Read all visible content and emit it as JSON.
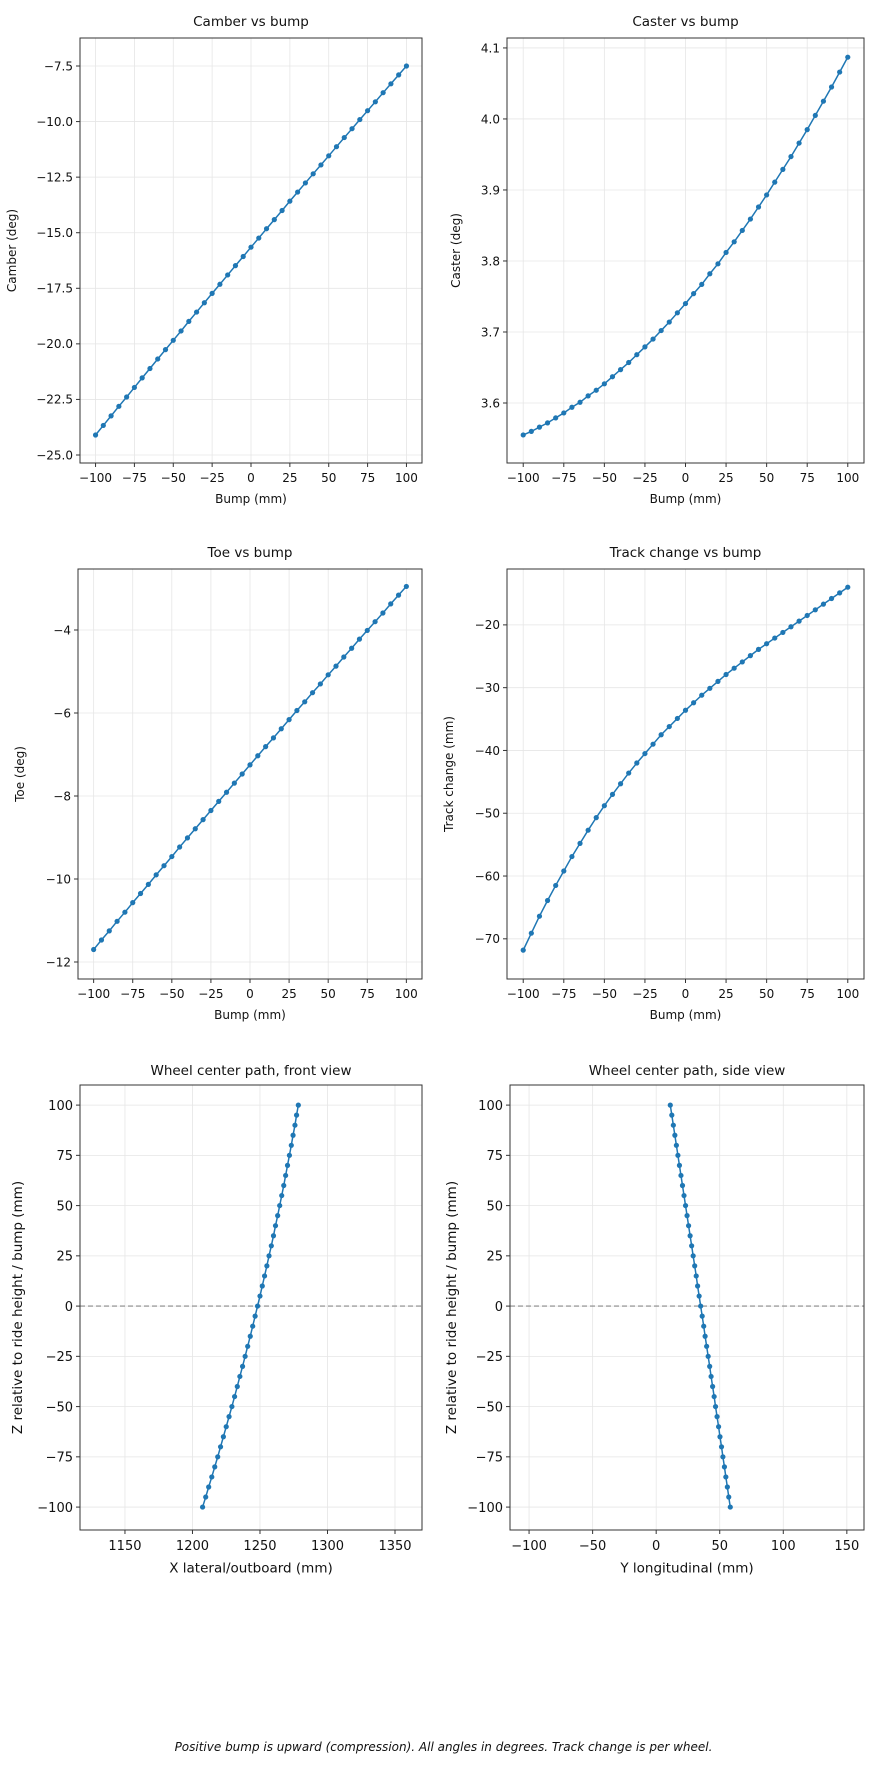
{
  "footnote": "Positive bump is upward (compression). All angles in degrees. Track change is per wheel.",
  "colors": {
    "series": "#1f77b4",
    "grid": "#e6e6e6",
    "frame": "#333333",
    "reference_line": "#888888"
  },
  "chart_data": [
    {
      "type": "line",
      "title": "Camber vs bump",
      "xlabel": "Bump (mm)",
      "ylabel": "Camber (deg)",
      "xlim": [
        -110,
        110
      ],
      "ylim": [
        -25.36,
        -6.24
      ],
      "grid": true,
      "markers": true,
      "xticks": [
        {
          "v": -100,
          "label": "−100"
        },
        {
          "v": -75,
          "label": "−75"
        },
        {
          "v": -50,
          "label": "−50"
        },
        {
          "v": -25,
          "label": "−25"
        },
        {
          "v": 0,
          "label": "0"
        },
        {
          "v": 25,
          "label": "25"
        },
        {
          "v": 50,
          "label": "50"
        },
        {
          "v": 75,
          "label": "75"
        },
        {
          "v": 100,
          "label": "100"
        }
      ],
      "yticks": [
        {
          "v": -7.5,
          "label": "−7.5"
        },
        {
          "v": -10,
          "label": "−10.0"
        },
        {
          "v": -12.5,
          "label": "−12.5"
        },
        {
          "v": -15,
          "label": "−15.0"
        },
        {
          "v": -17.5,
          "label": "−17.5"
        },
        {
          "v": -20,
          "label": "−20.0"
        },
        {
          "v": -22.5,
          "label": "−22.5"
        },
        {
          "v": -25,
          "label": "−25.0"
        }
      ],
      "x": [
        -100,
        -95,
        -90,
        -85,
        -80,
        -75,
        -70,
        -65,
        -60,
        -55,
        -50,
        -45,
        -40,
        -35,
        -30,
        -25,
        -20,
        -15,
        -10,
        -5,
        0,
        5,
        10,
        15,
        20,
        25,
        30,
        35,
        40,
        45,
        50,
        55,
        60,
        65,
        70,
        75,
        80,
        85,
        90,
        95,
        100
      ],
      "y": [
        -24.1,
        -23.67,
        -23.24,
        -22.81,
        -22.39,
        -21.96,
        -21.53,
        -21.11,
        -20.68,
        -20.26,
        -19.84,
        -19.42,
        -18.99,
        -18.57,
        -18.15,
        -17.73,
        -17.32,
        -16.9,
        -16.48,
        -16.07,
        -15.65,
        -15.24,
        -14.82,
        -14.41,
        -14.0,
        -13.58,
        -13.17,
        -12.76,
        -12.35,
        -11.95,
        -11.54,
        -11.13,
        -10.72,
        -10.32,
        -9.91,
        -9.51,
        -9.11,
        -8.7,
        -8.3,
        -7.9,
        -7.5
      ]
    },
    {
      "type": "line",
      "title": "Caster vs bump",
      "xlabel": "Bump (mm)",
      "ylabel": "Caster (deg)",
      "xlim": [
        -110,
        110
      ],
      "ylim": [
        3.5155,
        4.114
      ],
      "grid": true,
      "markers": true,
      "xticks": [
        {
          "v": -100,
          "label": "−100"
        },
        {
          "v": -75,
          "label": "−75"
        },
        {
          "v": -50,
          "label": "−50"
        },
        {
          "v": -25,
          "label": "−25"
        },
        {
          "v": 0,
          "label": "0"
        },
        {
          "v": 25,
          "label": "25"
        },
        {
          "v": 50,
          "label": "50"
        },
        {
          "v": 75,
          "label": "75"
        },
        {
          "v": 100,
          "label": "100"
        }
      ],
      "yticks": [
        {
          "v": 3.6,
          "label": "3.6"
        },
        {
          "v": 3.7,
          "label": "3.7"
        },
        {
          "v": 3.8,
          "label": "3.8"
        },
        {
          "v": 3.9,
          "label": "3.9"
        },
        {
          "v": 4.0,
          "label": "4.0"
        },
        {
          "v": 4.1,
          "label": "4.1"
        }
      ],
      "x": [
        -100,
        -95,
        -90,
        -85,
        -80,
        -75,
        -70,
        -65,
        -60,
        -55,
        -50,
        -45,
        -40,
        -35,
        -30,
        -25,
        -20,
        -15,
        -10,
        -5,
        0,
        5,
        10,
        15,
        20,
        25,
        30,
        35,
        40,
        45,
        50,
        55,
        60,
        65,
        70,
        75,
        80,
        85,
        90,
        95,
        100
      ],
      "y": [
        3.555,
        3.56,
        3.566,
        3.572,
        3.579,
        3.586,
        3.594,
        3.601,
        3.61,
        3.618,
        3.627,
        3.637,
        3.647,
        3.657,
        3.668,
        3.679,
        3.69,
        3.702,
        3.714,
        3.727,
        3.74,
        3.754,
        3.767,
        3.782,
        3.796,
        3.812,
        3.827,
        3.843,
        3.859,
        3.876,
        3.893,
        3.911,
        3.929,
        3.947,
        3.966,
        3.985,
        4.005,
        4.025,
        4.045,
        4.066,
        4.087
      ]
    },
    {
      "type": "line",
      "title": "Toe vs bump",
      "xlabel": "Bump (mm)",
      "ylabel": "Toe (deg)",
      "xlim": [
        -110,
        110
      ],
      "ylim": [
        -12.41,
        -2.53
      ],
      "grid": true,
      "markers": true,
      "xticks": [
        {
          "v": -100,
          "label": "−100"
        },
        {
          "v": -75,
          "label": "−75"
        },
        {
          "v": -50,
          "label": "−50"
        },
        {
          "v": -25,
          "label": "−25"
        },
        {
          "v": 0,
          "label": "0"
        },
        {
          "v": 25,
          "label": "25"
        },
        {
          "v": 50,
          "label": "50"
        },
        {
          "v": 75,
          "label": "75"
        },
        {
          "v": 100,
          "label": "100"
        }
      ],
      "yticks": [
        {
          "v": -4,
          "label": "−4"
        },
        {
          "v": -6,
          "label": "−6"
        },
        {
          "v": -8,
          "label": "−8"
        },
        {
          "v": -10,
          "label": "−10"
        },
        {
          "v": -12,
          "label": "−12"
        }
      ],
      "x": [
        -100,
        -95,
        -90,
        -85,
        -80,
        -75,
        -70,
        -65,
        -60,
        -55,
        -50,
        -45,
        -40,
        -35,
        -30,
        -25,
        -20,
        -15,
        -10,
        -5,
        0,
        5,
        10,
        15,
        20,
        25,
        30,
        35,
        40,
        45,
        50,
        55,
        60,
        65,
        70,
        75,
        80,
        85,
        90,
        95,
        100
      ],
      "y": [
        -11.7,
        -11.47,
        -11.25,
        -11.02,
        -10.8,
        -10.57,
        -10.35,
        -10.13,
        -9.9,
        -9.68,
        -9.46,
        -9.23,
        -9.01,
        -8.79,
        -8.57,
        -8.35,
        -8.13,
        -7.91,
        -7.69,
        -7.47,
        -7.25,
        -7.03,
        -6.81,
        -6.6,
        -6.38,
        -6.16,
        -5.94,
        -5.73,
        -5.51,
        -5.3,
        -5.08,
        -4.87,
        -4.65,
        -4.44,
        -4.22,
        -4.01,
        -3.8,
        -3.59,
        -3.37,
        -3.16,
        -2.95
      ]
    },
    {
      "type": "line",
      "title": "Track change vs bump",
      "xlabel": "Bump (mm)",
      "ylabel": "Track change (mm)",
      "xlim": [
        -110,
        110
      ],
      "ylim": [
        -76.4,
        -11.1
      ],
      "grid": true,
      "markers": true,
      "xticks": [
        {
          "v": -100,
          "label": "−100"
        },
        {
          "v": -75,
          "label": "−75"
        },
        {
          "v": -50,
          "label": "−50"
        },
        {
          "v": -25,
          "label": "−25"
        },
        {
          "v": 0,
          "label": "0"
        },
        {
          "v": 25,
          "label": "25"
        },
        {
          "v": 50,
          "label": "50"
        },
        {
          "v": 75,
          "label": "75"
        },
        {
          "v": 100,
          "label": "100"
        }
      ],
      "yticks": [
        {
          "v": -20,
          "label": "−20"
        },
        {
          "v": -30,
          "label": "−30"
        },
        {
          "v": -40,
          "label": "−40"
        },
        {
          "v": -50,
          "label": "−50"
        },
        {
          "v": -60,
          "label": "−60"
        },
        {
          "v": -70,
          "label": "−70"
        }
      ],
      "x": [
        -100,
        -95,
        -90,
        -85,
        -80,
        -75,
        -70,
        -65,
        -60,
        -55,
        -50,
        -45,
        -40,
        -35,
        -30,
        -25,
        -20,
        -15,
        -10,
        -5,
        0,
        5,
        10,
        15,
        20,
        25,
        30,
        35,
        40,
        45,
        50,
        55,
        60,
        65,
        70,
        75,
        80,
        85,
        90,
        95,
        100
      ],
      "y": [
        -71.8,
        -69.1,
        -66.4,
        -63.9,
        -61.5,
        -59.2,
        -56.9,
        -54.8,
        -52.7,
        -50.7,
        -48.8,
        -47.0,
        -45.3,
        -43.6,
        -42.0,
        -40.5,
        -39.0,
        -37.5,
        -36.2,
        -34.9,
        -33.6,
        -32.4,
        -31.2,
        -30.1,
        -29.0,
        -27.9,
        -26.9,
        -25.9,
        -24.9,
        -23.9,
        -23.0,
        -22.1,
        -21.2,
        -20.3,
        -19.4,
        -18.5,
        -17.6,
        -16.7,
        -15.8,
        -14.9,
        -14.0
      ]
    },
    {
      "type": "line",
      "title": "Wheel center path, front view",
      "xlabel": "X lateral/outboard (mm)",
      "ylabel": "Z relative to ride height / bump (mm)",
      "xlim": [
        1116.7,
        1370
      ],
      "ylim": [
        -111.4,
        110
      ],
      "grid": true,
      "markers": true,
      "reference_line": {
        "y": 0,
        "style": "dashed"
      },
      "xticks": [
        {
          "v": 1150,
          "label": "1150"
        },
        {
          "v": 1200,
          "label": "1200"
        },
        {
          "v": 1250,
          "label": "1250"
        },
        {
          "v": 1300,
          "label": "1300"
        },
        {
          "v": 1350,
          "label": "1350"
        }
      ],
      "yticks": [
        {
          "v": 100,
          "label": "100"
        },
        {
          "v": 75,
          "label": "75"
        },
        {
          "v": 50,
          "label": "50"
        },
        {
          "v": 25,
          "label": "25"
        },
        {
          "v": 0,
          "label": "0"
        },
        {
          "v": -25,
          "label": "−25"
        },
        {
          "v": -50,
          "label": "−50"
        },
        {
          "v": -75,
          "label": "−75"
        },
        {
          "v": -100,
          "label": "−100"
        }
      ],
      "x": [
        1207.5,
        1209.8,
        1212.0,
        1214.3,
        1216.5,
        1218.7,
        1220.8,
        1222.9,
        1225.0,
        1227.1,
        1229.2,
        1231.2,
        1233.2,
        1235.1,
        1237.1,
        1239.0,
        1240.9,
        1242.8,
        1244.6,
        1246.4,
        1248.2,
        1250.0,
        1251.7,
        1253.4,
        1255.1,
        1256.7,
        1258.4,
        1260.0,
        1261.5,
        1263.1,
        1264.6,
        1266.1,
        1267.6,
        1269.0,
        1270.4,
        1271.8,
        1273.2,
        1274.5,
        1275.9,
        1277.1,
        1278.4
      ],
      "y": [
        -100,
        -95,
        -90,
        -85,
        -80,
        -75,
        -70,
        -65,
        -60,
        -55,
        -50,
        -45,
        -40,
        -35,
        -30,
        -25,
        -20,
        -15,
        -10,
        -5,
        0,
        5,
        10,
        15,
        20,
        25,
        30,
        35,
        40,
        45,
        50,
        55,
        60,
        65,
        70,
        75,
        80,
        85,
        90,
        95,
        100
      ]
    },
    {
      "type": "line",
      "title": "Wheel center path, side view",
      "xlabel": "Y longitudinal (mm)",
      "ylabel": "Z relative to ride height / bump (mm)",
      "xlim": [
        -115,
        163.5
      ],
      "ylim": [
        -111.4,
        110
      ],
      "grid": true,
      "markers": true,
      "reference_line": {
        "y": 0,
        "style": "dashed"
      },
      "xticks": [
        {
          "v": -100,
          "label": "−100"
        },
        {
          "v": -50,
          "label": "−50"
        },
        {
          "v": 0,
          "label": "0"
        },
        {
          "v": 50,
          "label": "50"
        },
        {
          "v": 100,
          "label": "100"
        },
        {
          "v": 150,
          "label": "150"
        }
      ],
      "yticks": [
        {
          "v": 100,
          "label": "100"
        },
        {
          "v": 75,
          "label": "75"
        },
        {
          "v": 50,
          "label": "50"
        },
        {
          "v": 25,
          "label": "25"
        },
        {
          "v": 0,
          "label": "0"
        },
        {
          "v": -25,
          "label": "−25"
        },
        {
          "v": -50,
          "label": "−50"
        },
        {
          "v": -75,
          "label": "−75"
        },
        {
          "v": -100,
          "label": "−100"
        }
      ],
      "x": [
        58.3,
        57.1,
        56.0,
        54.8,
        53.7,
        52.5,
        51.4,
        50.2,
        49.1,
        47.9,
        46.7,
        45.6,
        44.4,
        43.2,
        42.1,
        40.9,
        39.7,
        38.5,
        37.4,
        36.2,
        35.0,
        33.8,
        32.6,
        31.5,
        30.3,
        29.1,
        27.9,
        26.7,
        25.5,
        24.3,
        23.1,
        21.9,
        20.7,
        19.5,
        18.3,
        17.1,
        15.9,
        14.7,
        13.5,
        12.3,
        11.1
      ],
      "y": [
        -100,
        -95,
        -90,
        -85,
        -80,
        -75,
        -70,
        -65,
        -60,
        -55,
        -50,
        -45,
        -40,
        -35,
        -30,
        -25,
        -20,
        -15,
        -10,
        -5,
        0,
        5,
        10,
        15,
        20,
        25,
        30,
        35,
        40,
        45,
        50,
        55,
        60,
        65,
        70,
        75,
        80,
        85,
        90,
        95,
        100
      ]
    }
  ]
}
